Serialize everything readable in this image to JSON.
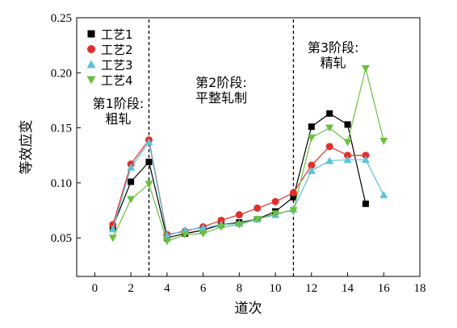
{
  "chart_data": {
    "type": "line",
    "title": "",
    "xlabel": "道次",
    "ylabel": "等效应变",
    "xlim": [
      -1,
      18
    ],
    "ylim": [
      0.015,
      0.25
    ],
    "xticks": [
      0,
      2,
      4,
      6,
      8,
      10,
      12,
      14,
      16,
      18
    ],
    "yticks": [
      0.05,
      0.1,
      0.15,
      0.2,
      0.25
    ],
    "ytick_labels": [
      "0.05",
      "0.10",
      "0.15",
      "0.20",
      "0.25"
    ],
    "grid": false,
    "legend_position": "top-left",
    "stage_dividers": [
      3,
      11
    ],
    "annotations": [
      {
        "lines": [
          "第1阶段:",
          "粗轧"
        ],
        "x": 1.3,
        "y": 0.168
      },
      {
        "lines": [
          "第2阶段:",
          "平整轧制"
        ],
        "x": 7.0,
        "y": 0.187
      },
      {
        "lines": [
          "第3阶段:",
          "精轧"
        ],
        "x": 13.2,
        "y": 0.219
      }
    ],
    "series": [
      {
        "name": "工艺1",
        "marker": "square",
        "color": "#000000",
        "line_color": "#000000",
        "x": [
          1,
          2,
          3,
          4,
          5,
          6,
          7,
          8,
          9,
          10,
          11,
          12,
          13,
          14,
          15
        ],
        "values": [
          0.06,
          0.101,
          0.119,
          0.05,
          0.054,
          0.057,
          0.062,
          0.064,
          0.067,
          0.074,
          0.087,
          0.151,
          0.163,
          0.153,
          0.081
        ]
      },
      {
        "name": "工艺2",
        "marker": "circle",
        "color": "#e0302c",
        "line_color": "#e0302c",
        "x": [
          1,
          2,
          3,
          4,
          5,
          6,
          7,
          8,
          9,
          10,
          11,
          12,
          13,
          14,
          15
        ],
        "values": [
          0.062,
          0.117,
          0.139,
          0.053,
          0.056,
          0.06,
          0.066,
          0.071,
          0.077,
          0.083,
          0.091,
          0.116,
          0.133,
          0.125,
          0.125
        ]
      },
      {
        "name": "工艺3",
        "marker": "triangle-up",
        "color": "#5bc2d8",
        "line_color": "#5bc2d8",
        "x": [
          1,
          2,
          3,
          4,
          5,
          6,
          7,
          8,
          9,
          10,
          11,
          12,
          13,
          14,
          15,
          16
        ],
        "values": [
          0.058,
          0.114,
          0.137,
          0.052,
          0.057,
          0.059,
          0.062,
          0.063,
          0.067,
          0.071,
          0.076,
          0.111,
          0.12,
          0.121,
          0.121,
          0.089
        ]
      },
      {
        "name": "工艺4",
        "marker": "triangle-down",
        "color": "#6bbf3f",
        "line_color": "#6bbf3f",
        "x": [
          1,
          2,
          3,
          4,
          5,
          6,
          7,
          8,
          9,
          10,
          11,
          12,
          13,
          14,
          15,
          16
        ],
        "values": [
          0.05,
          0.085,
          0.099,
          0.047,
          0.053,
          0.054,
          0.06,
          0.062,
          0.067,
          0.072,
          0.075,
          0.141,
          0.15,
          0.137,
          0.204,
          0.138
        ]
      }
    ]
  }
}
